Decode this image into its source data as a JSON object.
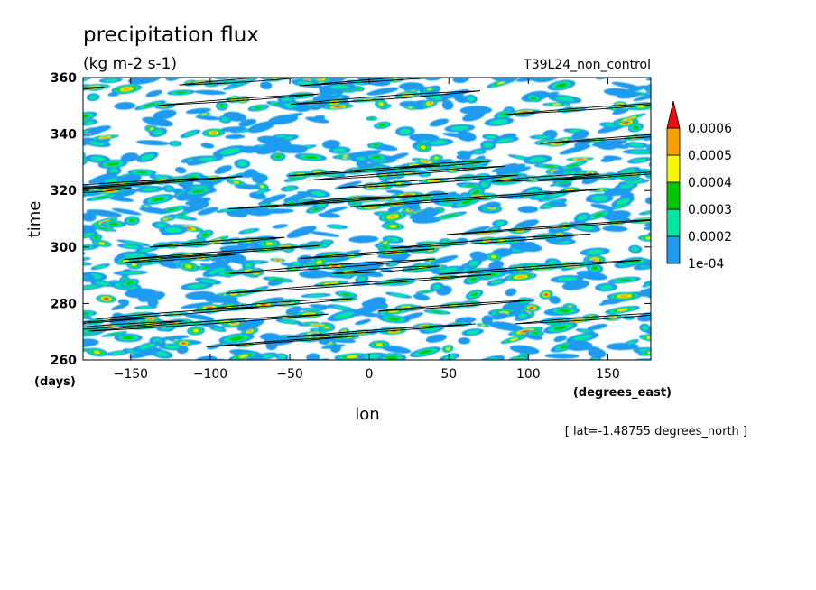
{
  "chart_data": {
    "type": "heatmap",
    "title": "precipitation flux",
    "units": "(kg m-2 s-1)",
    "run_label": "T39L24_non_control",
    "xlabel": "lon",
    "x_units": "(degrees_east)",
    "ylabel": "time",
    "y_units": "(days)",
    "annotation": "[ lat=-1.48755 degrees_north ]",
    "xlim": [
      -180,
      177
    ],
    "ylim": [
      260,
      360
    ],
    "x_ticks": [
      -150,
      -100,
      -50,
      0,
      50,
      100,
      150
    ],
    "x_tick_labels": [
      "−150",
      "−100",
      "−50",
      "0",
      "50",
      "100",
      "150"
    ],
    "y_ticks": [
      260,
      280,
      300,
      320,
      340,
      360
    ],
    "y_tick_labels": [
      "260",
      "280",
      "300",
      "320",
      "340",
      "360"
    ],
    "colorbar": {
      "levels": [
        0.0001,
        0.0002,
        0.0003,
        0.0004,
        0.0005,
        0.0006
      ],
      "labels": [
        "1e-04",
        "0.0002",
        "0.0003",
        "0.0004",
        "0.0005",
        "0.0006"
      ],
      "colors": [
        "#1e9bf0",
        "#00e8a0",
        "#00c800",
        "#f8f800",
        "#f8a000",
        "#e81010"
      ],
      "extend": "max"
    },
    "propagating_bands": {
      "direction": "eastward",
      "slope_degrees_per_day": 25,
      "band_count": 38
    }
  }
}
